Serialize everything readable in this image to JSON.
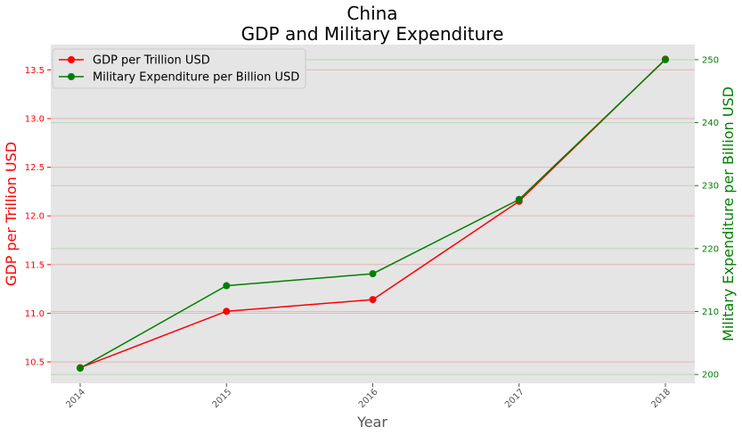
{
  "chart_data": {
    "type": "line",
    "title": "China",
    "subtitle": "GDP and Military Expenditure",
    "xlabel": "Year",
    "categories": [
      "2014",
      "2015",
      "2016",
      "2017",
      "2018"
    ],
    "left_axis": {
      "label": "GDP per Trillion USD",
      "color": "#ff0000",
      "ylim": [
        10.28,
        13.76
      ],
      "ticks": [
        "10.5",
        "11.0",
        "11.5",
        "12.0",
        "12.5",
        "13.0",
        "13.5"
      ]
    },
    "right_axis": {
      "label": "Military Expenditure per Billion USD",
      "color": "#008000",
      "ylim": [
        198.6,
        252.4
      ],
      "ticks": [
        "200",
        "210",
        "220",
        "230",
        "240",
        "250"
      ]
    },
    "series": [
      {
        "name": "GDP per Trillion USD",
        "axis": "left",
        "color": "#ff0000",
        "values": [
          10.44,
          11.02,
          11.14,
          12.15,
          13.61
        ]
      },
      {
        "name": "Military Expenditure per Billion USD",
        "axis": "right",
        "color": "#008000",
        "values": [
          201.0,
          214.1,
          216.0,
          227.8,
          250.0
        ]
      }
    ],
    "grid": true,
    "legend": "top-left",
    "plot_background": "#e5e5e5"
  }
}
